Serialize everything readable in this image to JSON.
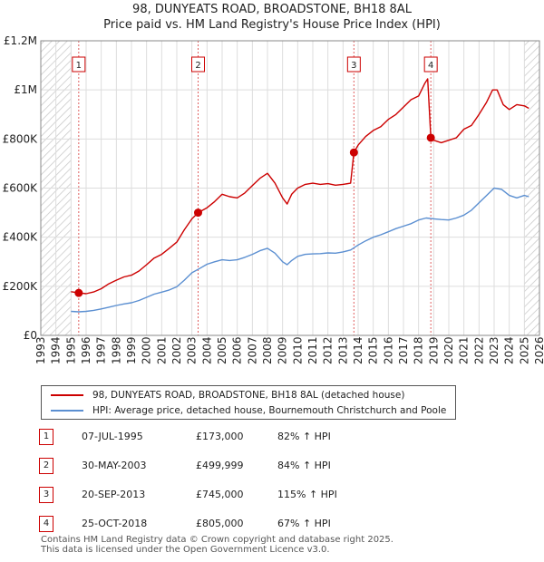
{
  "chart_data": {
    "type": "line",
    "title": "98, DUNYEATS ROAD, BROADSTONE, BH18 8AL",
    "subtitle": "Price paid vs. HM Land Registry's House Price Index (HPI)",
    "x_range": [
      1993,
      2026
    ],
    "ylim": [
      0,
      1200000
    ],
    "yticks": [
      {
        "value": 0,
        "label": "£0"
      },
      {
        "value": 200000,
        "label": "£200K"
      },
      {
        "value": 400000,
        "label": "£400K"
      },
      {
        "value": 600000,
        "label": "£600K"
      },
      {
        "value": 800000,
        "label": "£800K"
      },
      {
        "value": 1000000,
        "label": "£1M"
      },
      {
        "value": 1200000,
        "label": "£1.2M"
      }
    ],
    "xticks": [
      "1993",
      "1994",
      "1995",
      "1996",
      "1997",
      "1998",
      "1999",
      "2000",
      "2001",
      "2002",
      "2003",
      "2004",
      "2005",
      "2006",
      "2007",
      "2008",
      "2009",
      "2010",
      "2011",
      "2012",
      "2013",
      "2014",
      "2015",
      "2016",
      "2017",
      "2018",
      "2019",
      "2020",
      "2021",
      "2022",
      "2023",
      "2024",
      "2025",
      "2026"
    ],
    "grid": true,
    "hatched_ranges": [
      [
        1993,
        1995.0
      ],
      [
        2025.0,
        2026
      ]
    ],
    "series": [
      {
        "name": "98, DUNYEATS ROAD, BROADSTONE, BH18 8AL (detached house)",
        "color": "#cc0000",
        "x": [
          1995.0,
          1995.51,
          1996.0,
          1996.5,
          1997.0,
          1997.5,
          1998.0,
          1998.5,
          1999.0,
          1999.5,
          2000.0,
          2000.5,
          2001.0,
          2001.5,
          2002.0,
          2002.5,
          2003.0,
          2003.41,
          2004.0,
          2004.5,
          2005.0,
          2005.5,
          2006.0,
          2006.5,
          2007.0,
          2007.5,
          2008.0,
          2008.5,
          2009.0,
          2009.3,
          2009.6,
          2010.0,
          2010.5,
          2011.0,
          2011.5,
          2012.0,
          2012.5,
          2013.0,
          2013.5,
          2013.72,
          2014.0,
          2014.5,
          2015.0,
          2015.5,
          2016.0,
          2016.5,
          2017.0,
          2017.5,
          2018.0,
          2018.4,
          2018.6,
          2018.81,
          2019.0,
          2019.5,
          2020.0,
          2020.5,
          2021.0,
          2021.5,
          2022.0,
          2022.5,
          2022.9,
          2023.2,
          2023.6,
          2024.0,
          2024.5,
          2025.0,
          2025.3
        ],
        "values": [
          178000,
          173000,
          170000,
          177000,
          190000,
          210000,
          225000,
          238000,
          245000,
          262000,
          288000,
          315000,
          330000,
          355000,
          380000,
          430000,
          475000,
          499999,
          520000,
          545000,
          575000,
          565000,
          560000,
          580000,
          610000,
          640000,
          660000,
          620000,
          560000,
          535000,
          575000,
          600000,
          615000,
          620000,
          615000,
          618000,
          612000,
          615000,
          620000,
          745000,
          775000,
          810000,
          835000,
          850000,
          880000,
          900000,
          930000,
          960000,
          975000,
          1025000,
          1045000,
          805000,
          795000,
          785000,
          795000,
          805000,
          840000,
          855000,
          900000,
          950000,
          1000000,
          1000000,
          940000,
          920000,
          940000,
          935000,
          925000
        ]
      },
      {
        "name": "HPI: Average price, detached house, Bournemouth Christchurch and Poole",
        "color": "#5b8fd1",
        "x": [
          1995.0,
          1995.5,
          1996.0,
          1996.5,
          1997.0,
          1997.5,
          1998.0,
          1998.5,
          1999.0,
          1999.5,
          2000.0,
          2000.5,
          2001.0,
          2001.5,
          2002.0,
          2002.5,
          2003.0,
          2003.5,
          2004.0,
          2004.5,
          2005.0,
          2005.5,
          2006.0,
          2006.5,
          2007.0,
          2007.5,
          2008.0,
          2008.5,
          2009.0,
          2009.3,
          2009.6,
          2010.0,
          2010.5,
          2011.0,
          2011.5,
          2012.0,
          2012.5,
          2013.0,
          2013.5,
          2014.0,
          2014.5,
          2015.0,
          2015.5,
          2016.0,
          2016.5,
          2017.0,
          2017.5,
          2018.0,
          2018.5,
          2019.0,
          2019.5,
          2020.0,
          2020.5,
          2021.0,
          2021.5,
          2022.0,
          2022.5,
          2023.0,
          2023.5,
          2024.0,
          2024.5,
          2025.0,
          2025.3
        ],
        "values": [
          98000,
          96000,
          98000,
          102000,
          108000,
          115000,
          122000,
          128000,
          133000,
          142000,
          155000,
          168000,
          176000,
          185000,
          198000,
          225000,
          255000,
          272000,
          290000,
          300000,
          308000,
          305000,
          308000,
          318000,
          330000,
          345000,
          355000,
          335000,
          300000,
          288000,
          305000,
          322000,
          330000,
          332000,
          333000,
          336000,
          335000,
          340000,
          348000,
          368000,
          385000,
          400000,
          410000,
          422000,
          435000,
          445000,
          455000,
          470000,
          478000,
          475000,
          472000,
          470000,
          478000,
          490000,
          510000,
          540000,
          570000,
          600000,
          595000,
          570000,
          560000,
          570000,
          565000
        ]
      }
    ],
    "annotations": [
      {
        "label": "1",
        "x": 1995.51,
        "y": 173000
      },
      {
        "label": "2",
        "x": 2003.41,
        "y": 499999
      },
      {
        "label": "3",
        "x": 2013.72,
        "y": 745000
      },
      {
        "label": "4",
        "x": 2018.81,
        "y": 805000
      }
    ]
  },
  "legend": {
    "property_label": "98, DUNYEATS ROAD, BROADSTONE, BH18 8AL (detached house)",
    "hpi_label": "HPI: Average price, detached house, Bournemouth Christchurch and Poole",
    "property_color": "#cc0000",
    "hpi_color": "#5b8fd1"
  },
  "sales": [
    {
      "num": "1",
      "date": "07-JUL-1995",
      "price": "£173,000",
      "hpi": "82% ↑ HPI"
    },
    {
      "num": "2",
      "date": "30-MAY-2003",
      "price": "£499,999",
      "hpi": "84% ↑ HPI"
    },
    {
      "num": "3",
      "date": "20-SEP-2013",
      "price": "£745,000",
      "hpi": "115% ↑ HPI"
    },
    {
      "num": "4",
      "date": "25-OCT-2018",
      "price": "£805,000",
      "hpi": "67% ↑ HPI"
    }
  ],
  "footer": {
    "line1": "Contains HM Land Registry data © Crown copyright and database right 2025.",
    "line2": "This data is licensed under the Open Government Licence v3.0."
  }
}
